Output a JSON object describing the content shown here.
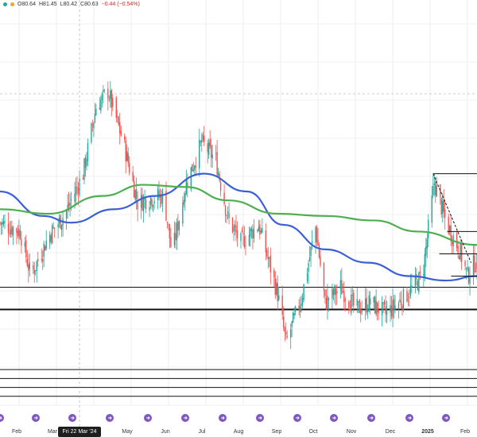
{
  "ohlc": {
    "open_label": "O",
    "open": "80.64",
    "high_label": "H",
    "high": "81.45",
    "low_label": "L",
    "low": "80.42",
    "close_label": "C",
    "close": "80.63",
    "change": "−0.44 (−0.54%)",
    "status_colors": [
      "#26a69a",
      "#f5a623"
    ],
    "down_color": "#d32f2f"
  },
  "crosshair_date": "Fri 22 Mar '24",
  "chart_data": {
    "type": "candlestick",
    "months": [
      "Feb",
      "Mar",
      "May",
      "Jun",
      "Jul",
      "Aug",
      "Sep",
      "Oct",
      "Nov",
      "Dec",
      "2025",
      "Feb"
    ],
    "price_path_points": [
      [
        "2024-01-15",
        79.0
      ],
      [
        "2024-02-01",
        78.6
      ],
      [
        "2024-02-10",
        76.6
      ],
      [
        "2024-02-25",
        78.4
      ],
      [
        "2024-03-10",
        79.4
      ],
      [
        "2024-03-25",
        81.2
      ],
      [
        "2024-04-05",
        84.2
      ],
      [
        "2024-04-15",
        84.9
      ],
      [
        "2024-04-28",
        82.6
      ],
      [
        "2024-05-10",
        79.9
      ],
      [
        "2024-05-20",
        80.1
      ],
      [
        "2024-06-01",
        80.2
      ],
      [
        "2024-06-08",
        77.6
      ],
      [
        "2024-06-20",
        80.8
      ],
      [
        "2024-07-03",
        82.6
      ],
      [
        "2024-07-15",
        81.8
      ],
      [
        "2024-07-25",
        79.2
      ],
      [
        "2024-08-05",
        78.1
      ],
      [
        "2024-08-20",
        78.9
      ],
      [
        "2024-09-05",
        75.8
      ],
      [
        "2024-09-12",
        73.6
      ],
      [
        "2024-09-25",
        75.6
      ],
      [
        "2024-10-07",
        78.8
      ],
      [
        "2024-10-15",
        75.4
      ],
      [
        "2024-10-28",
        76.1
      ],
      [
        "2024-11-10",
        75.1
      ],
      [
        "2024-11-22",
        75.4
      ],
      [
        "2024-12-05",
        74.9
      ],
      [
        "2024-12-20",
        75.6
      ],
      [
        "2025-01-05",
        76.6
      ],
      [
        "2025-01-15",
        80.8
      ],
      [
        "2025-01-25",
        79.0
      ],
      [
        "2025-02-05",
        77.8
      ],
      [
        "2025-02-12",
        76.6
      ],
      [
        "2025-02-18",
        77.2
      ]
    ],
    "series": [
      {
        "name": "",
        "color": "#3b5fd6",
        "type": "moving-average",
        "points": [
          [
            "2024-01-15",
            80.4
          ],
          [
            "2024-02-20",
            79.3
          ],
          [
            "2024-03-15",
            79.0
          ],
          [
            "2024-04-20",
            79.6
          ],
          [
            "2024-05-25",
            80.2
          ],
          [
            "2024-07-05",
            81.2
          ],
          [
            "2024-08-10",
            80.4
          ],
          [
            "2024-09-10",
            78.9
          ],
          [
            "2024-10-15",
            77.8
          ],
          [
            "2024-11-20",
            77.2
          ],
          [
            "2024-12-25",
            76.6
          ],
          [
            "2025-01-25",
            76.4
          ],
          [
            "2025-02-20",
            76.6
          ]
        ]
      },
      {
        "name": "",
        "color": "#4caf50",
        "type": "moving-average",
        "points": [
          [
            "2024-01-15",
            79.6
          ],
          [
            "2024-02-25",
            79.4
          ],
          [
            "2024-04-10",
            80.2
          ],
          [
            "2024-05-15",
            80.7
          ],
          [
            "2024-06-20",
            80.6
          ],
          [
            "2024-07-25",
            80.0
          ],
          [
            "2024-09-05",
            79.4
          ],
          [
            "2024-10-15",
            79.3
          ],
          [
            "2024-11-25",
            79.1
          ],
          [
            "2025-01-01",
            78.6
          ],
          [
            "2025-02-20",
            78.0
          ]
        ]
      }
    ],
    "horizontal_levels": [
      76.1,
      75.1,
      72.4,
      72.0,
      71.6,
      71.2
    ],
    "trend_segment": [
      [
        "2025-01-14",
        81.2
      ],
      [
        "2025-02-15",
        77.2
      ]
    ],
    "ylim": [
      70.8,
      89.0
    ],
    "xlim": [
      "2024-01-15",
      "2025-02-20"
    ],
    "grid": true
  }
}
